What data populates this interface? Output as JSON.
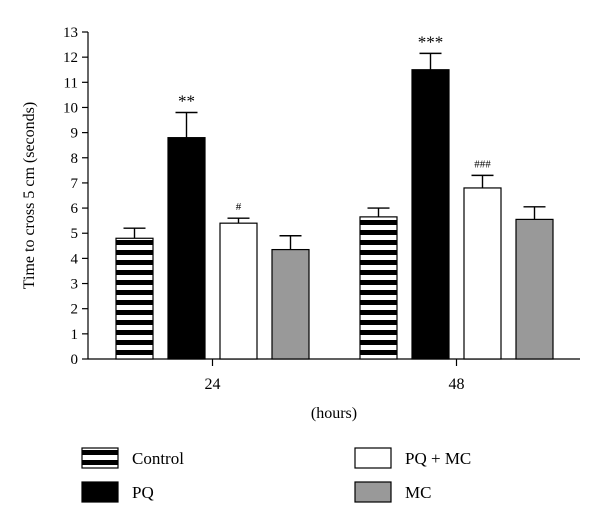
{
  "chart_data": {
    "type": "bar",
    "xlabel": "(hours)",
    "ylabel": "Time to cross 5 cm (seconds)",
    "ylim": [
      0,
      13
    ],
    "yticks": [
      0,
      1,
      2,
      3,
      4,
      5,
      6,
      7,
      8,
      9,
      10,
      11,
      12,
      13
    ],
    "categories": [
      "24",
      "48"
    ],
    "series": [
      {
        "name": "Control",
        "fill": "striped-horizontal",
        "values": [
          4.8,
          5.65
        ],
        "errors": [
          0.4,
          0.35
        ],
        "annotations": [
          "",
          ""
        ]
      },
      {
        "name": "PQ",
        "fill": "black",
        "values": [
          8.8,
          11.5
        ],
        "errors": [
          1.0,
          0.65
        ],
        "annotations": [
          "**",
          "***"
        ]
      },
      {
        "name": "PQ + MC",
        "fill": "white",
        "values": [
          5.4,
          6.8
        ],
        "errors": [
          0.2,
          0.5
        ],
        "annotations": [
          "#",
          "###"
        ]
      },
      {
        "name": "MC",
        "fill": "gray",
        "values": [
          4.35,
          5.55
        ],
        "errors": [
          0.55,
          0.5
        ],
        "annotations": [
          "",
          ""
        ]
      }
    ],
    "legend": {
      "placement": "bottom",
      "entries": [
        "Control",
        "PQ",
        "PQ + MC",
        "MC"
      ]
    },
    "colors": {
      "black": "#000000",
      "gray": "#999999",
      "white": "#ffffff",
      "stripe": "#000000"
    },
    "grid": false
  }
}
